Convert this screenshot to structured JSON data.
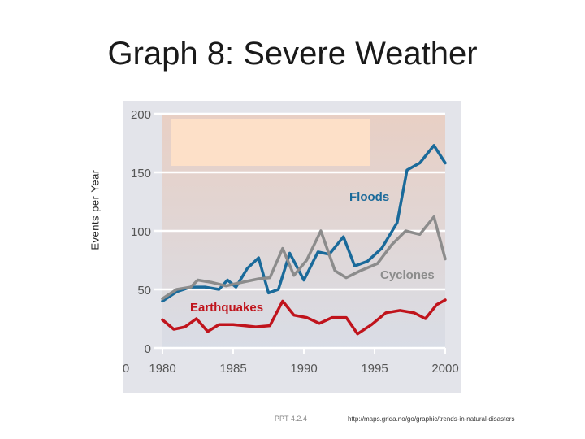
{
  "slide": {
    "title": "Graph 8: Severe Weather",
    "footer_ref": "PPT 4.2.4",
    "source": "http://maps.grida.no/go/graphic/trends-in-natural-disasters"
  },
  "colors": {
    "floods": "#1a6a9a",
    "cyclones": "#8c8c8c",
    "earthquakes": "#c0141c",
    "plot_bg_top": "#e8cfc4",
    "plot_bg_bottom": "#d9dde6",
    "legend_box": "#fde0c8"
  },
  "chart_data": {
    "type": "line",
    "title": "",
    "xlabel": "",
    "ylabel": "Events per Year",
    "xlim": [
      1980,
      2000
    ],
    "ylim": [
      0,
      200
    ],
    "x_ticks": [
      1980,
      1985,
      1990,
      1995,
      2000
    ],
    "x_tick_labels": [
      "1980",
      "1985",
      "1990",
      "1995",
      "2000"
    ],
    "x_origin_label": "0",
    "y_ticks": [
      0,
      50,
      100,
      150,
      200
    ],
    "y_tick_labels": [
      "0",
      "50",
      "100",
      "150",
      "200"
    ],
    "grid": true,
    "x": [
      1980,
      1981,
      1982,
      1983,
      1984,
      1985,
      1986,
      1987,
      1988,
      1989,
      1990,
      1991,
      1992,
      1993,
      1994,
      1995,
      1996,
      1997,
      1998,
      1999,
      2000
    ],
    "series": [
      {
        "name": "Floods",
        "color_key": "floods",
        "values": [
          40,
          48,
          52,
          52,
          50,
          58,
          52,
          68,
          77,
          47,
          50,
          81,
          58,
          82,
          80,
          95,
          70,
          74,
          85,
          107,
          152,
          158,
          173,
          158
        ],
        "x": [
          1980,
          1981,
          1982,
          1983,
          1984,
          1984.6,
          1985.2,
          1986,
          1986.8,
          1987.5,
          1988.2,
          1989,
          1990,
          1991,
          1991.8,
          1992.8,
          1993.6,
          1994.5,
          1995.5,
          1996.6,
          1997.3,
          1998.2,
          1999.2,
          2000
        ]
      },
      {
        "name": "Cyclones",
        "color_key": "cyclones",
        "values": [
          42,
          50,
          52,
          58,
          56,
          53,
          55,
          57,
          59,
          60,
          85,
          62,
          75,
          100,
          66,
          60,
          66,
          72,
          88,
          100,
          97,
          112,
          76
        ],
        "x": [
          1980,
          1981,
          1982,
          1982.5,
          1983.5,
          1984.5,
          1985.2,
          1986,
          1986.8,
          1987.6,
          1988.5,
          1989.3,
          1990.2,
          1991.2,
          1992.2,
          1993,
          1994,
          1995.2,
          1996.2,
          1997.2,
          1998.2,
          1999.2,
          2000
        ]
      },
      {
        "name": "Earthquakes",
        "color_key": "earthquakes",
        "values": [
          24,
          16,
          18,
          25,
          14,
          20,
          20,
          19,
          18,
          19,
          40,
          28,
          26,
          21,
          26,
          26,
          12,
          20,
          30,
          32,
          30,
          25,
          37,
          41
        ],
        "x": [
          1980,
          1980.8,
          1981.6,
          1982.4,
          1983.2,
          1984,
          1985,
          1985.8,
          1986.6,
          1987.6,
          1988.5,
          1989.3,
          1990.2,
          1991.1,
          1992,
          1993,
          1993.8,
          1994.8,
          1995.8,
          1996.8,
          1997.8,
          1998.6,
          1999.4,
          2000
        ]
      }
    ],
    "series_labels": [
      "Floods",
      "Cyclones",
      "Earthquakes"
    ]
  }
}
